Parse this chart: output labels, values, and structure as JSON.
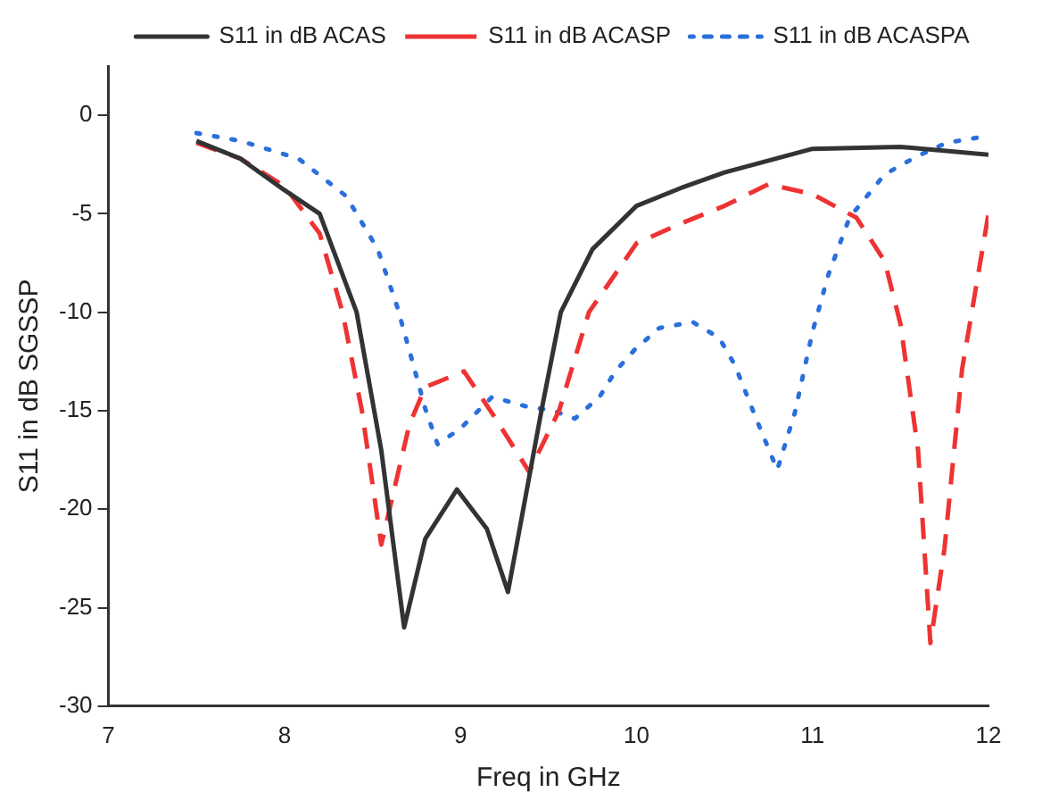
{
  "chart_data": {
    "type": "line",
    "xlabel": "Freq in GHz",
    "ylabel": "S11 in dB SGSSP",
    "xlim": [
      7,
      12
    ],
    "xticks": [
      7,
      8,
      9,
      10,
      11,
      12
    ],
    "ylim": [
      -30,
      2.5
    ],
    "yticks": [
      -30,
      -25,
      -20,
      -15,
      -10,
      -5,
      0
    ],
    "grid": false,
    "legend": "top right",
    "marker": "none",
    "series": [
      {
        "name": "S11 in dB ACAS",
        "color": "#333333",
        "line_style": "solid",
        "x": [
          7.5,
          7.75,
          8.0,
          8.2,
          8.41,
          8.55,
          8.68,
          8.8,
          8.98,
          9.15,
          9.27,
          9.46,
          9.57,
          9.75,
          10.0,
          10.25,
          10.5,
          11.0,
          11.5,
          12.0
        ],
        "values": [
          -1.3,
          -2.2,
          -3.8,
          -5.0,
          -10.0,
          -17.0,
          -26.0,
          -21.5,
          -19.0,
          -21.0,
          -24.2,
          -15.0,
          -10.0,
          -6.8,
          -4.6,
          -3.7,
          -2.9,
          -1.7,
          -1.6,
          -2.0
        ]
      },
      {
        "name": "S11 in dB ACASP",
        "color": "#ee3333",
        "line_style": "dashed",
        "x": [
          7.5,
          7.75,
          8.0,
          8.2,
          8.33,
          8.44,
          8.55,
          8.71,
          8.8,
          9.02,
          9.2,
          9.39,
          9.56,
          9.73,
          10.0,
          10.25,
          10.5,
          10.75,
          11.0,
          11.25,
          11.41,
          11.5,
          11.6,
          11.67,
          11.75,
          11.85,
          12.0
        ],
        "values": [
          -1.4,
          -2.2,
          -3.6,
          -6.0,
          -10.0,
          -15.0,
          -21.8,
          -15.7,
          -13.8,
          -13.0,
          -15.4,
          -18.1,
          -15.0,
          -10.0,
          -6.5,
          -5.5,
          -4.6,
          -3.5,
          -4.0,
          -5.2,
          -7.4,
          -10.6,
          -17.0,
          -26.8,
          -22.0,
          -12.9,
          -5.0
        ]
      },
      {
        "name": "S11 in dB ACASPA",
        "color": "#2a6fdb",
        "line_style": "dotted",
        "x": [
          7.5,
          7.75,
          8.08,
          8.35,
          8.53,
          8.64,
          8.73,
          8.8,
          8.87,
          9.0,
          9.18,
          9.38,
          9.53,
          9.65,
          9.79,
          9.88,
          9.99,
          10.13,
          10.32,
          10.47,
          10.56,
          10.68,
          10.8,
          10.9,
          11.0,
          11.09,
          11.21,
          11.41,
          11.59,
          11.76,
          11.96
        ],
        "values": [
          -0.9,
          -1.3,
          -2.2,
          -4.1,
          -6.8,
          -9.7,
          -12.6,
          -14.9,
          -16.7,
          -15.9,
          -14.3,
          -14.8,
          -15.0,
          -15.4,
          -14.3,
          -13.0,
          -11.9,
          -10.8,
          -10.5,
          -11.3,
          -12.7,
          -15.4,
          -18.0,
          -15.1,
          -11.0,
          -8.1,
          -5.2,
          -3.0,
          -2.1,
          -1.4,
          -1.1
        ]
      }
    ]
  }
}
